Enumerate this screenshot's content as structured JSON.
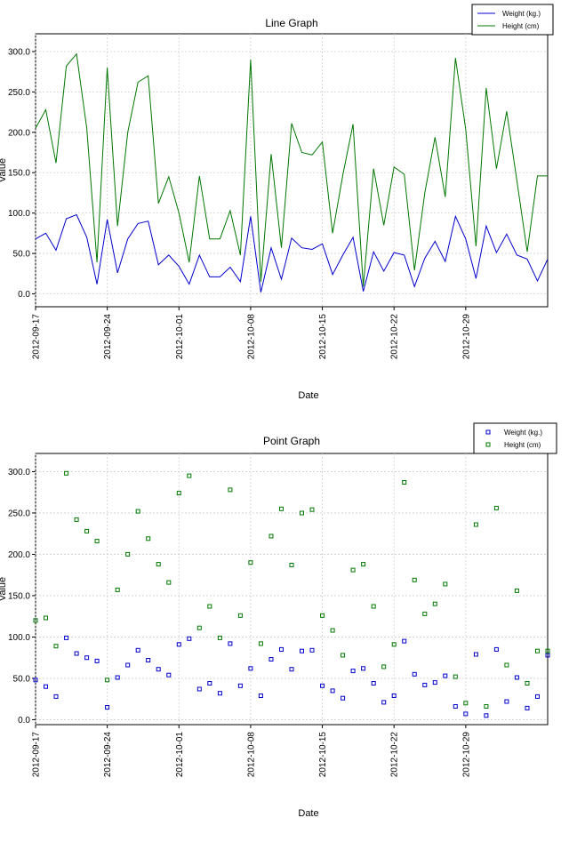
{
  "chart_data": [
    {
      "type": "line",
      "title": "Line Graph",
      "xlabel": "Date",
      "ylabel": "Value",
      "ylim": [
        -16,
        322
      ],
      "x_ticks": [
        "2012-09-17",
        "2012-09-24",
        "2012-10-01",
        "2012-10-08",
        "2012-10-15",
        "2012-10-22",
        "2012-10-29"
      ],
      "y_ticks": [
        "0.0",
        "50.0",
        "100.0",
        "150.0",
        "200.0",
        "250.0",
        "300.0"
      ],
      "grid": true,
      "legend_position": "top-right",
      "x": [
        "2012-09-17",
        "2012-09-18",
        "2012-09-19",
        "2012-09-20",
        "2012-09-21",
        "2012-09-22",
        "2012-09-23",
        "2012-09-24",
        "2012-09-25",
        "2012-09-26",
        "2012-09-27",
        "2012-09-28",
        "2012-09-29",
        "2012-09-30",
        "2012-10-01",
        "2012-10-02",
        "2012-10-03",
        "2012-10-04",
        "2012-10-05",
        "2012-10-06",
        "2012-10-07",
        "2012-10-08",
        "2012-10-09",
        "2012-10-10",
        "2012-10-11",
        "2012-10-12",
        "2012-10-13",
        "2012-10-14",
        "2012-10-15",
        "2012-10-16",
        "2012-10-17",
        "2012-10-18",
        "2012-10-19",
        "2012-10-20",
        "2012-10-21",
        "2012-10-22",
        "2012-10-23",
        "2012-10-24",
        "2012-10-25",
        "2012-10-26",
        "2012-10-27",
        "2012-10-28",
        "2012-10-29",
        "2012-10-30",
        "2012-10-31",
        "2012-11-01",
        "2012-11-02",
        "2012-11-03",
        "2012-11-04",
        "2012-11-05",
        "2012-11-06"
      ],
      "series": [
        {
          "name": "Weight (kg.)",
          "color": "#0000cc",
          "values": [
            68,
            75,
            54,
            93,
            98,
            70,
            12,
            92,
            26,
            68,
            87,
            90,
            36,
            48,
            34,
            12,
            48,
            21,
            21,
            33,
            15,
            96,
            2,
            57,
            18,
            69,
            57,
            55,
            62,
            24,
            48,
            70,
            3,
            52,
            28,
            51,
            48,
            9,
            44,
            65,
            40,
            96,
            68,
            19,
            84,
            51,
            74,
            48,
            43,
            16,
            43
          ]
        },
        {
          "name": "Height (cm)",
          "color": "#007700",
          "values": [
            205,
            228,
            162,
            282,
            297,
            205,
            39,
            280,
            84,
            200,
            262,
            270,
            112,
            145,
            100,
            39,
            146,
            68,
            68,
            103,
            48,
            290,
            15,
            173,
            57,
            211,
            175,
            172,
            188,
            75,
            147,
            210,
            9,
            155,
            85,
            157,
            148,
            29,
            125,
            194,
            120,
            292,
            204,
            59,
            255,
            155,
            226,
            140,
            52,
            146,
            146
          ]
        }
      ]
    },
    {
      "type": "scatter",
      "title": "Point Graph",
      "xlabel": "Date",
      "ylabel": "Value",
      "ylim": [
        -6,
        322
      ],
      "x_ticks": [
        "2012-09-17",
        "2012-09-24",
        "2012-10-01",
        "2012-10-08",
        "2012-10-15",
        "2012-10-22",
        "2012-10-29"
      ],
      "y_ticks": [
        "0.0",
        "50.0",
        "100.0",
        "150.0",
        "200.0",
        "250.0",
        "300.0"
      ],
      "grid": true,
      "legend_position": "top-right",
      "x": [
        "2012-09-17",
        "2012-09-18",
        "2012-09-19",
        "2012-09-20",
        "2012-09-21",
        "2012-09-22",
        "2012-09-23",
        "2012-09-24",
        "2012-09-25",
        "2012-09-26",
        "2012-09-27",
        "2012-09-28",
        "2012-09-29",
        "2012-09-30",
        "2012-10-01",
        "2012-10-02",
        "2012-10-03",
        "2012-10-04",
        "2012-10-05",
        "2012-10-06",
        "2012-10-07",
        "2012-10-08",
        "2012-10-09",
        "2012-10-10",
        "2012-10-11",
        "2012-10-12",
        "2012-10-13",
        "2012-10-14",
        "2012-10-15",
        "2012-10-16",
        "2012-10-17",
        "2012-10-18",
        "2012-10-19",
        "2012-10-20",
        "2012-10-21",
        "2012-10-22",
        "2012-10-23",
        "2012-10-24",
        "2012-10-25",
        "2012-10-26",
        "2012-10-27",
        "2012-10-28",
        "2012-10-29",
        "2012-10-30",
        "2012-10-31",
        "2012-11-01",
        "2012-11-02",
        "2012-11-03",
        "2012-11-04",
        "2012-11-05",
        "2012-11-06"
      ],
      "series": [
        {
          "name": "Weight (kg.)",
          "color": "#0000cc",
          "marker": "hollow-square",
          "values": [
            48,
            40,
            28,
            99,
            80,
            75,
            71,
            15,
            51,
            66,
            84,
            72,
            61,
            54,
            91,
            98,
            37,
            44,
            32,
            92,
            41,
            62,
            29,
            73,
            85,
            61,
            83,
            84,
            41,
            35,
            26,
            59,
            62,
            44,
            21,
            29,
            95,
            55,
            42,
            45,
            53,
            16,
            7,
            79,
            5,
            85,
            22,
            51,
            14,
            28,
            78
          ]
        },
        {
          "name": "Height (cm)",
          "color": "#007700",
          "marker": "hollow-square",
          "values": [
            120,
            123,
            89,
            298,
            242,
            228,
            216,
            48,
            157,
            200,
            252,
            219,
            188,
            166,
            274,
            295,
            111,
            137,
            99,
            278,
            126,
            190,
            92,
            222,
            255,
            187,
            250,
            254,
            126,
            108,
            78,
            181,
            188,
            137,
            64,
            91,
            287,
            169,
            128,
            140,
            164,
            52,
            20,
            236,
            16,
            256,
            66,
            156,
            44,
            83,
            83
          ]
        }
      ]
    }
  ]
}
